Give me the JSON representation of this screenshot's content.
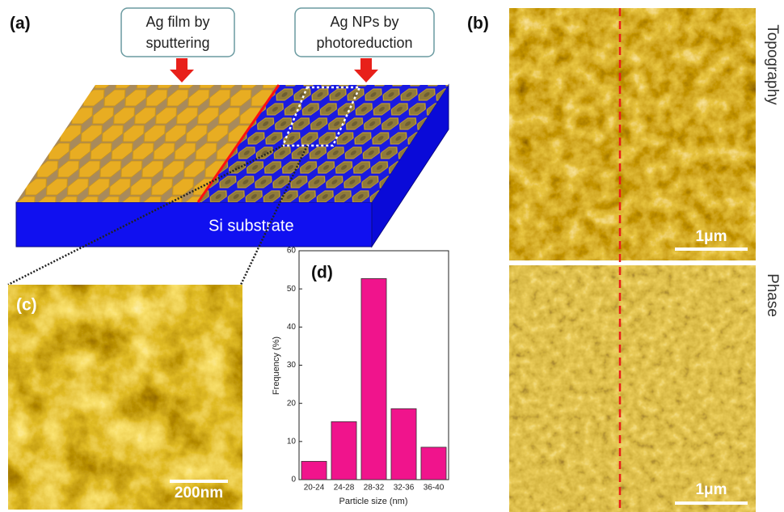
{
  "figure": {
    "panel_labels": [
      "(a)",
      "(b)",
      "(c)",
      "(d)"
    ],
    "callouts": [
      [
        "Ag film by",
        "sputtering"
      ],
      [
        "Ag NPs by",
        "photoreduction"
      ]
    ],
    "substrate": "Si substrate",
    "image_labels": [
      "Topography",
      "Phase"
    ],
    "scale_bars": [
      "1μm",
      "1μm",
      "200nm"
    ]
  },
  "chart_data": {
    "type": "bar",
    "categories": [
      "20-24",
      "24-28",
      "28-32",
      "32-36",
      "36-40"
    ],
    "values": [
      4.8,
      15.2,
      52.7,
      18.6,
      8.5
    ],
    "color": "#f0148c",
    "xlabel": "Particle size (nm)",
    "ylabel": "Frequency (%)",
    "ylim": [
      0,
      60
    ],
    "yticks": [
      0,
      10,
      20,
      30,
      40,
      50,
      60
    ]
  }
}
